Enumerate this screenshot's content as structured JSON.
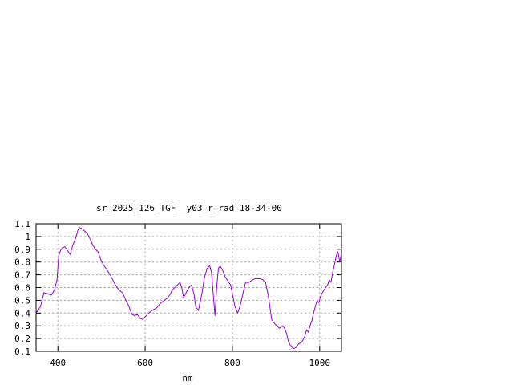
{
  "chart_data": {
    "type": "line",
    "title": "sr_2025_126_TGF__y03_r_rad 18-34-00",
    "xlabel": "nm",
    "ylabel": "",
    "xlim": [
      350,
      1050
    ],
    "ylim": [
      0.1,
      1.1
    ],
    "xticks": [
      400,
      600,
      800,
      1000
    ],
    "yticks": [
      0.1,
      0.2,
      0.3,
      0.4,
      0.5,
      0.6,
      0.7,
      0.8,
      0.9,
      1,
      1.1
    ],
    "grid": true,
    "legend": "none",
    "series": [
      {
        "color": "#9400d3",
        "x": [
          350,
          360,
          368,
          378,
          385,
          392,
          398,
          402,
          406,
          410,
          416,
          422,
          428,
          434,
          440,
          446,
          450,
          456,
          462,
          468,
          474,
          480,
          486,
          492,
          498,
          504,
          512,
          520,
          530,
          540,
          548,
          556,
          562,
          566,
          570,
          576,
          582,
          588,
          594,
          600,
          608,
          616,
          626,
          636,
          644,
          652,
          658,
          662,
          668,
          674,
          680,
          684,
          688,
          694,
          700,
          706,
          712,
          716,
          722,
          730,
          736,
          742,
          748,
          752,
          756,
          760,
          764,
          768,
          772,
          778,
          784,
          790,
          796,
          800,
          806,
          812,
          818,
          824,
          830,
          838,
          846,
          852,
          858,
          864,
          870,
          876,
          882,
          886,
          890,
          896,
          902,
          908,
          914,
          920,
          924,
          928,
          934,
          940,
          946,
          952,
          958,
          962,
          966,
          970,
          974,
          978,
          982,
          986,
          990,
          994,
          998,
          1002,
          1006,
          1010,
          1014,
          1018,
          1022,
          1026,
          1030,
          1034,
          1038,
          1042,
          1046,
          1050
        ],
        "values": [
          0.4,
          0.45,
          0.56,
          0.55,
          0.54,
          0.58,
          0.66,
          0.85,
          0.89,
          0.91,
          0.92,
          0.89,
          0.86,
          0.93,
          0.98,
          1.05,
          1.07,
          1.06,
          1.04,
          1.02,
          0.98,
          0.93,
          0.9,
          0.88,
          0.82,
          0.78,
          0.74,
          0.7,
          0.63,
          0.58,
          0.56,
          0.5,
          0.46,
          0.42,
          0.39,
          0.38,
          0.39,
          0.36,
          0.35,
          0.37,
          0.4,
          0.42,
          0.44,
          0.48,
          0.5,
          0.52,
          0.55,
          0.58,
          0.6,
          0.62,
          0.64,
          0.6,
          0.52,
          0.56,
          0.6,
          0.62,
          0.55,
          0.45,
          0.42,
          0.55,
          0.68,
          0.75,
          0.77,
          0.72,
          0.55,
          0.38,
          0.6,
          0.75,
          0.77,
          0.73,
          0.68,
          0.65,
          0.62,
          0.55,
          0.45,
          0.4,
          0.46,
          0.55,
          0.64,
          0.64,
          0.66,
          0.67,
          0.67,
          0.67,
          0.66,
          0.64,
          0.54,
          0.45,
          0.35,
          0.32,
          0.3,
          0.28,
          0.3,
          0.28,
          0.24,
          0.18,
          0.14,
          0.12,
          0.13,
          0.16,
          0.17,
          0.19,
          0.22,
          0.27,
          0.25,
          0.3,
          0.34,
          0.4,
          0.45,
          0.5,
          0.48,
          0.53,
          0.56,
          0.58,
          0.6,
          0.62,
          0.66,
          0.64,
          0.72,
          0.78,
          0.85,
          0.88,
          0.8,
          0.87
        ]
      }
    ]
  }
}
